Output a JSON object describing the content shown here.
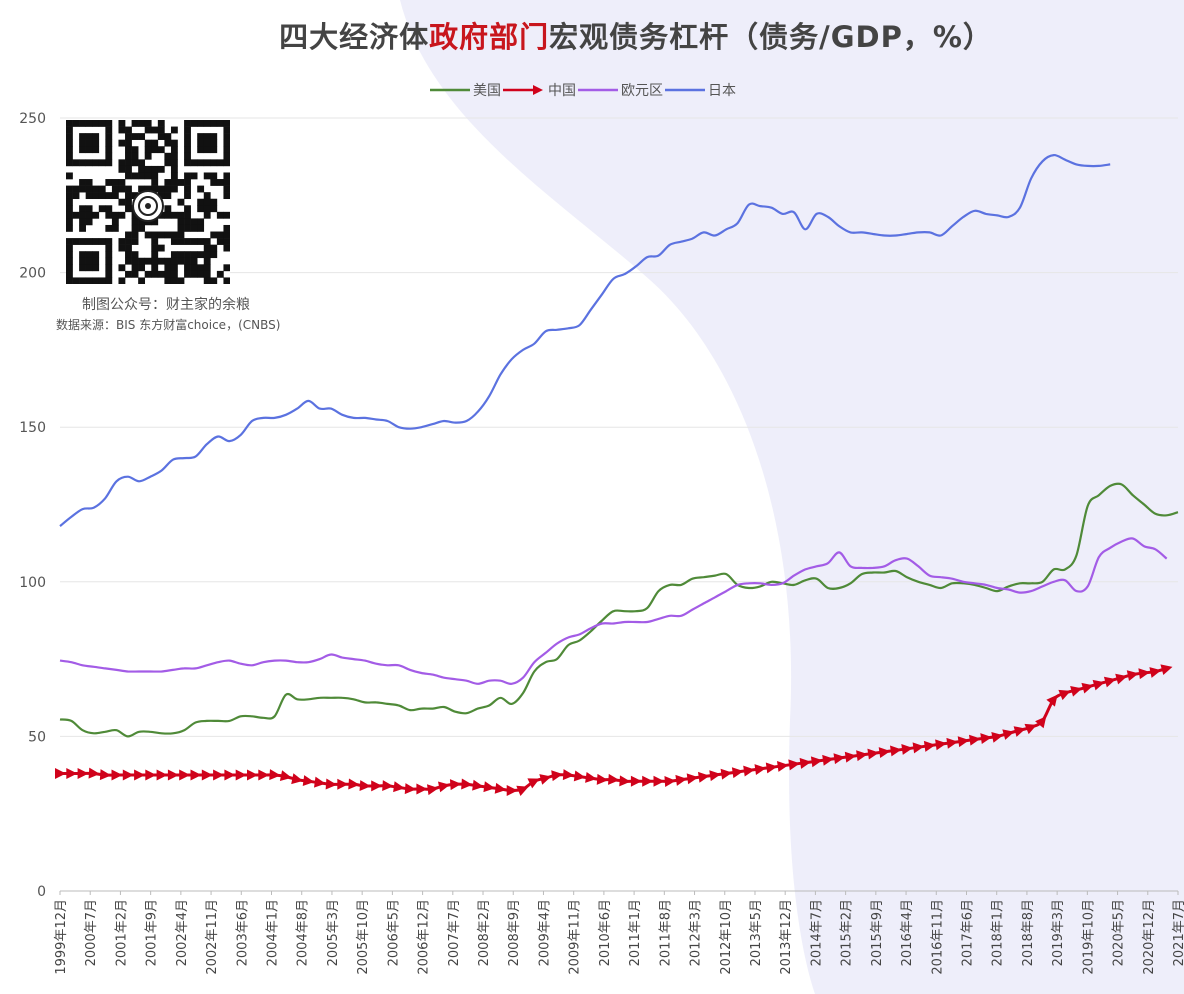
{
  "title": {
    "prefix": "四大经济体",
    "highlight": "政府部门",
    "suffix": "宏观债务杠杆（债务/GDP，%）"
  },
  "watermark": {
    "credit": "制图公众号：财主家的余粮",
    "source": "数据来源：BIS  东方财富choice，(CNBS)"
  },
  "colors": {
    "us": "#4f8a38",
    "china": "#d0021b",
    "euro": "#a35ce6",
    "japan": "#5b72e0",
    "grid": "#e6e6e6",
    "background_shape": "#e8e8f8"
  },
  "chart_data": {
    "type": "line",
    "title": "四大经济体政府部门宏观债务杠杆（债务/GDP，%）",
    "xlabel": "",
    "ylabel": "",
    "ylim": [
      0,
      250
    ],
    "yticks": [
      "0",
      "50",
      "100",
      "150",
      "200",
      "250"
    ],
    "grid": true,
    "legend_position": "top",
    "x_tick_labels": [
      "1999年12月",
      "2000年7月",
      "2001年2月",
      "2001年9月",
      "2002年4月",
      "2002年11月",
      "2003年6月",
      "2004年1月",
      "2004年8月",
      "2005年3月",
      "2005年10月",
      "2006年5月",
      "2006年12月",
      "2007年7月",
      "2008年2月",
      "2008年9月",
      "2009年4月",
      "2009年11月",
      "2010年6月",
      "2011年1月",
      "2011年8月",
      "2012年3月",
      "2012年10月",
      "2013年5月",
      "2013年12月",
      "2014年7月",
      "2015年2月",
      "2015年9月",
      "2016年4月",
      "2016年11月",
      "2017年6月",
      "2018年1月",
      "2018年8月",
      "2019年3月",
      "2019年10月",
      "2020年5月",
      "2020年12月",
      "2021年7月"
    ],
    "series": [
      {
        "name": "美国",
        "color": "#4f8a38",
        "marker": "none",
        "values": [
          55.5,
          55,
          52,
          51,
          51.5,
          52,
          50,
          51.5,
          51.5,
          51,
          51,
          52,
          54.5,
          55,
          55,
          55,
          56.5,
          56.5,
          56,
          56.5,
          63.5,
          62,
          62,
          62.5,
          62.5,
          62.5,
          62,
          61,
          61,
          60.5,
          60,
          58.5,
          59,
          59,
          59.5,
          58,
          57.5,
          59,
          60,
          62.5,
          60.5,
          64,
          71,
          74,
          75,
          79.5,
          81,
          84,
          87.5,
          90.5,
          90.5,
          90.5,
          91.5,
          97,
          99,
          99,
          101,
          101.5,
          102,
          102.5,
          99,
          98,
          98.5,
          100,
          99.5,
          99,
          100.5,
          101,
          98,
          98,
          99.5,
          102.5,
          103,
          103,
          103.5,
          101.5,
          100,
          99,
          98,
          99.5,
          99.5,
          99,
          98,
          97,
          98.5,
          99.5,
          99.5,
          100,
          104,
          104,
          108.5,
          124.5,
          128,
          131,
          131.5,
          128,
          125,
          122,
          121.5,
          122.5
        ]
      },
      {
        "name": "中国",
        "color": "#d0021b",
        "marker": "triangle",
        "values": [
          38,
          38,
          38,
          38,
          37.5,
          37.5,
          37.5,
          37.5,
          37.5,
          37.5,
          37.5,
          37.5,
          37.5,
          37.5,
          37.5,
          37.5,
          37.5,
          37.5,
          37.5,
          37.5,
          37,
          36,
          35.5,
          35,
          34.5,
          34.5,
          34.5,
          34,
          34,
          34,
          33.5,
          33,
          33,
          33,
          34,
          34.5,
          34.5,
          34,
          33.5,
          33,
          32.5,
          33,
          35.5,
          36.5,
          37.5,
          37.5,
          37,
          36.5,
          36,
          36,
          35.5,
          35.5,
          35.5,
          35.5,
          35.5,
          36,
          36.5,
          37,
          37.5,
          38,
          38.5,
          39,
          39.5,
          40,
          40.5,
          41,
          41.5,
          42,
          42.5,
          43,
          43.5,
          44,
          44.5,
          45,
          45.5,
          46,
          46.5,
          47,
          47.5,
          48,
          48.5,
          49,
          49.5,
          50,
          51,
          52,
          53,
          55,
          62,
          64,
          65,
          66,
          67,
          68,
          69,
          70,
          70.5,
          71,
          72
        ]
      },
      {
        "name": "欧元区",
        "color": "#a35ce6",
        "marker": "none",
        "values": [
          74.5,
          74,
          73,
          72.5,
          72,
          71.5,
          71,
          71,
          71,
          71,
          71.5,
          72,
          72,
          73,
          74,
          74.5,
          73.5,
          73,
          74,
          74.5,
          74.5,
          74,
          74,
          75,
          76.5,
          75.5,
          75,
          74.5,
          73.5,
          73,
          73,
          71.5,
          70.5,
          70,
          69,
          68.5,
          68,
          67,
          68,
          68,
          67,
          69,
          74,
          77,
          80,
          82,
          83,
          85,
          86.5,
          86.5,
          87,
          87,
          87,
          88,
          89,
          89,
          91,
          93,
          95,
          97,
          99,
          99.5,
          99.5,
          99,
          99.5,
          102,
          104,
          105,
          106,
          109.5,
          105,
          104.5,
          104.5,
          105,
          107,
          107.5,
          105,
          102,
          101.5,
          101,
          100,
          99.5,
          99,
          98,
          97.5,
          96.5,
          97,
          98.5,
          100,
          100.5,
          97,
          98.5,
          108,
          111,
          113,
          114,
          111.5,
          110.5,
          107.5
        ]
      },
      {
        "name": "日本",
        "color": "#5b72e0",
        "marker": "none",
        "values": [
          118,
          121,
          123.5,
          124,
          127,
          132.5,
          134,
          132.5,
          134,
          136,
          139.5,
          140,
          140.5,
          144.5,
          147,
          145.5,
          147.5,
          152,
          153,
          153,
          154,
          156,
          158.5,
          156,
          156,
          154,
          153,
          153,
          152.5,
          152,
          150,
          149.5,
          150,
          151,
          152,
          151.5,
          152,
          155,
          160,
          167,
          172,
          175,
          177,
          181,
          181.5,
          182,
          183,
          188,
          193,
          198,
          199.5,
          202,
          205,
          205.5,
          209,
          210,
          211,
          213,
          212,
          214,
          216,
          222,
          221.5,
          221,
          219,
          219.5,
          214,
          219,
          218,
          215,
          213,
          213,
          212.5,
          212,
          212,
          212.5,
          213,
          213,
          212,
          215,
          218,
          220,
          219,
          218.5,
          218,
          221,
          230.5,
          236,
          238,
          236.5,
          235,
          234.5,
          234.5,
          235
        ]
      }
    ]
  }
}
